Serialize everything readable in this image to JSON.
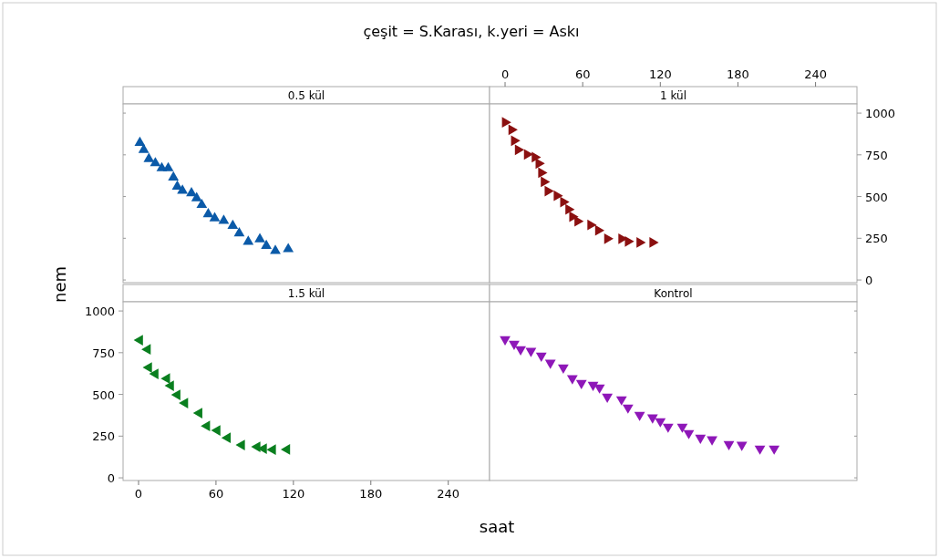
{
  "chart_data": [
    {
      "type": "scatter",
      "title": "0.5 kül",
      "annotations": [
        "çeşit = S.Karası, k.yeri = Askı"
      ],
      "marker": "triangle",
      "tick_labels": false,
      "xlim": [
        -12,
        272
      ],
      "ylim": [
        -16,
        1055
      ],
      "xticks": [
        0,
        60,
        120,
        180,
        240
      ],
      "yticks": [
        0,
        250,
        500,
        750,
        1000
      ],
      "series": [
        {
          "color": "#0b5aa8",
          "x": [
            1,
            4,
            8,
            13,
            18,
            23,
            27,
            30,
            34,
            41,
            45,
            49,
            54,
            59,
            66,
            73,
            78,
            85,
            94,
            99,
            106,
            116
          ],
          "values": [
            822,
            780,
            725,
            700,
            670,
            670,
            615,
            560,
            535,
            520,
            490,
            450,
            395,
            370,
            355,
            325,
            280,
            230,
            245,
            205,
            175,
            185
          ]
        }
      ]
    },
    {
      "type": "scatter",
      "title": "1 kül",
      "marker": "triangle",
      "xlim": [
        -12,
        272
      ],
      "ylim": [
        -16,
        1055
      ],
      "xticks": [
        0,
        60,
        120,
        180,
        240
      ],
      "yticks": [
        0,
        250,
        500,
        750,
        1000
      ],
      "series": [
        {
          "color": "#8b1010",
          "x": [
            0,
            5,
            7,
            10,
            17,
            23,
            26,
            28,
            30,
            33,
            40,
            45,
            49,
            52,
            56,
            66,
            72,
            79,
            90,
            95,
            104,
            114
          ],
          "values": [
            945,
            900,
            835,
            780,
            753,
            736,
            698,
            643,
            588,
            533,
            505,
            467,
            423,
            379,
            352,
            330,
            297,
            247,
            247,
            231,
            225,
            225
          ]
        }
      ]
    },
    {
      "type": "scatter",
      "title": "1.5 kül",
      "xlabel": "saat",
      "ylabel": "nem",
      "marker": "triangle",
      "xlim": [
        -12,
        272
      ],
      "ylim": [
        -16,
        1055
      ],
      "xticks": [
        0,
        60,
        120,
        180,
        240
      ],
      "yticks": [
        0,
        250,
        500,
        750,
        1000
      ],
      "series": [
        {
          "color": "#0a7f1f",
          "x": [
            1,
            7,
            8,
            13,
            22,
            25,
            30,
            36,
            47,
            53,
            61,
            69,
            80,
            92,
            97,
            104,
            115
          ],
          "values": [
            825,
            770,
            661,
            623,
            595,
            552,
            497,
            448,
            388,
            311,
            284,
            240,
            197,
            186,
            175,
            169,
            170
          ]
        }
      ]
    },
    {
      "type": "scatter",
      "title": "Kontrol",
      "marker": "triangle",
      "tick_labels": false,
      "xlim": [
        -12,
        272
      ],
      "ylim": [
        -16,
        1055
      ],
      "xticks": [
        0,
        60,
        120,
        180,
        240
      ],
      "yticks": [
        0,
        250,
        500,
        750,
        1000
      ],
      "series": [
        {
          "color": "#8e17b8",
          "x": [
            0,
            7,
            12,
            20,
            28,
            35,
            45,
            52,
            59,
            68,
            73,
            79,
            90,
            95,
            104,
            114,
            120,
            126,
            137,
            142,
            151,
            160,
            173,
            183,
            197,
            208
          ],
          "values": [
            830,
            803,
            770,
            760,
            732,
            689,
            661,
            596,
            568,
            557,
            541,
            486,
            470,
            421,
            377,
            361,
            339,
            306,
            306,
            268,
            240,
            230,
            202,
            197,
            175,
            175
          ]
        }
      ]
    }
  ]
}
